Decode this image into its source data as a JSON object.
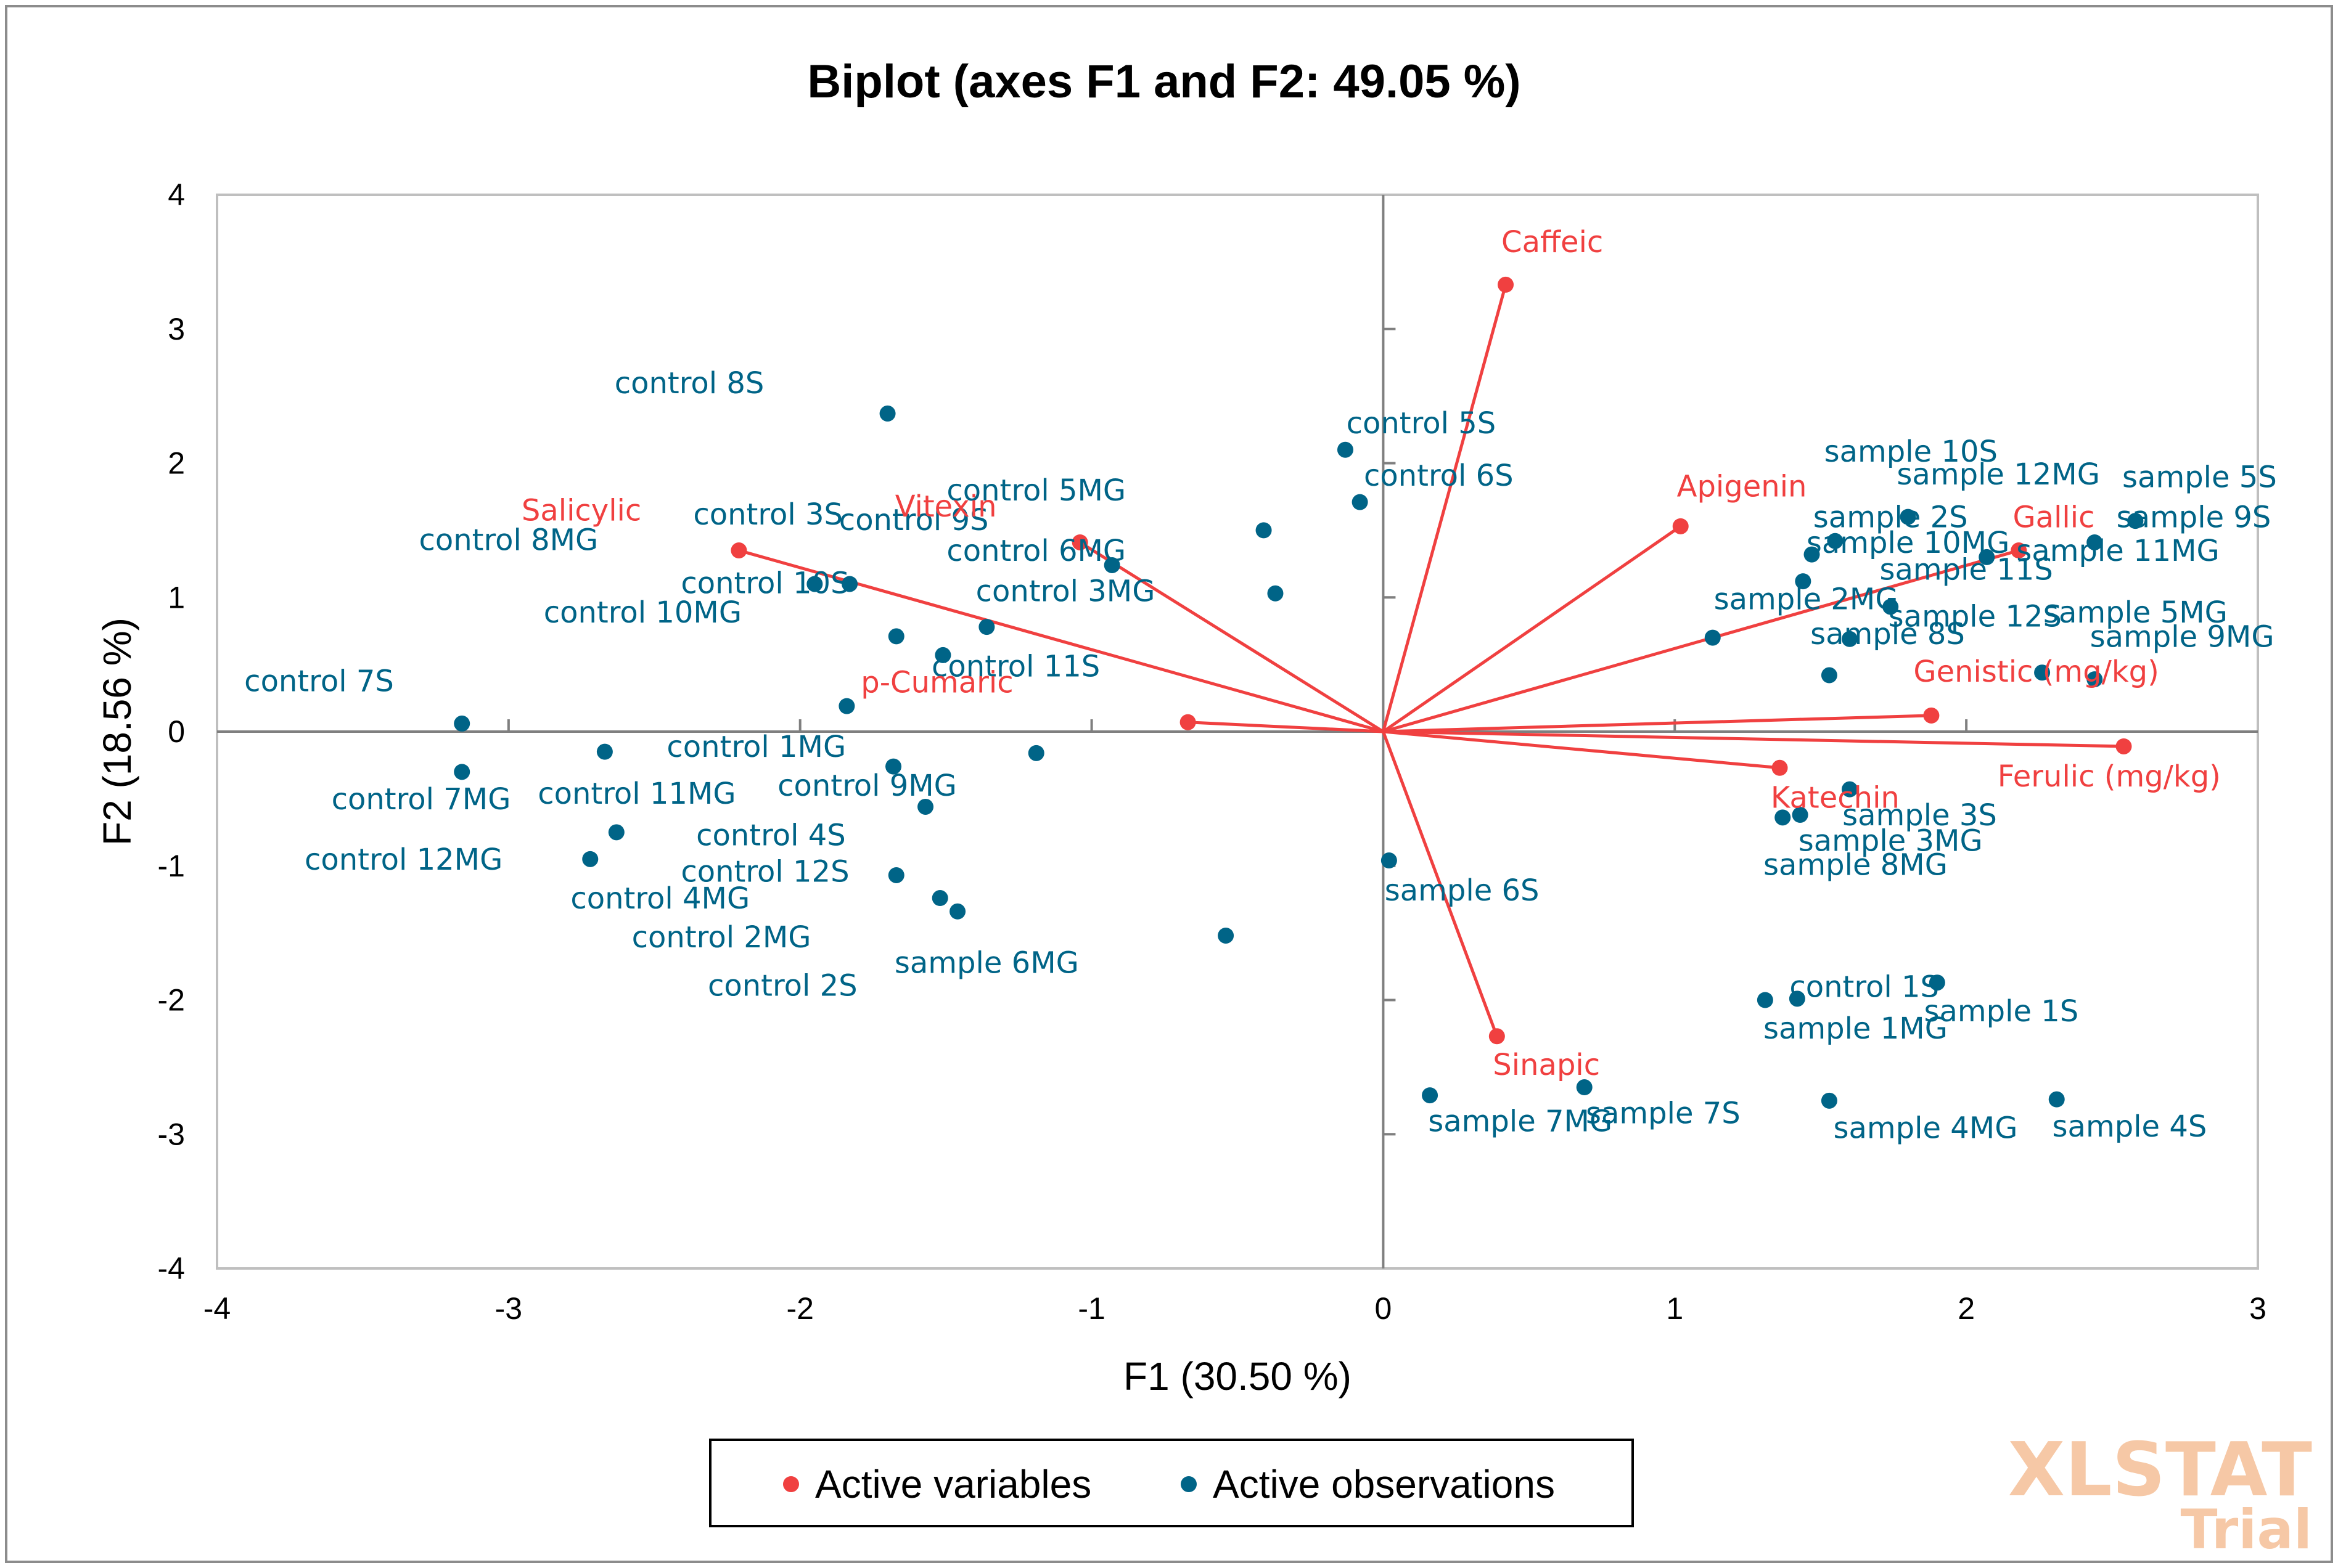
{
  "chart_data": {
    "type": "scatter",
    "title": "Biplot (axes F1 and F2: 49.05 %)",
    "xlabel": "F1 (30.50 %)",
    "ylabel": "F2 (18.56 %)",
    "xlim": [
      -4,
      3
    ],
    "ylim": [
      -4,
      4
    ],
    "xticks": [
      -4,
      -3,
      -2,
      -1,
      0,
      1,
      2,
      3
    ],
    "yticks": [
      -4,
      -3,
      -2,
      -1,
      0,
      1,
      2,
      3,
      4
    ],
    "legend": {
      "position": "bottom-center",
      "entries": [
        {
          "label": "Active variables",
          "color": "#f04040"
        },
        {
          "label": "Active observations",
          "color": "#006487"
        }
      ]
    },
    "colors": {
      "variables": "#f04040",
      "observations": "#006487",
      "axes": "#7f7f7f"
    },
    "watermark": [
      "XLSTAT",
      "Trial"
    ],
    "variables": [
      {
        "name": "Caffeic",
        "x": 0.42,
        "y": 3.33
      },
      {
        "name": "Apigenin",
        "x": 1.02,
        "y": 1.53
      },
      {
        "name": "Gallic",
        "x": 2.18,
        "y": 1.35
      },
      {
        "name": "Genistic (mg/kg)",
        "x": 1.88,
        "y": 0.12
      },
      {
        "name": "Ferulic (mg/kg)",
        "x": 2.54,
        "y": -0.11
      },
      {
        "name": "Katechin",
        "x": 1.36,
        "y": -0.27
      },
      {
        "name": "Sinapic",
        "x": 0.39,
        "y": -2.27
      },
      {
        "name": "Salicylic",
        "x": -2.21,
        "y": 1.35
      },
      {
        "name": "Vitexin",
        "x": -1.04,
        "y": 1.41
      },
      {
        "name": "p-Cumaric",
        "x": -0.67,
        "y": 0.07
      }
    ],
    "observations": [
      {
        "name": "control 8S",
        "x": -1.7,
        "y": 2.37
      },
      {
        "name": "control 5S",
        "x": -0.13,
        "y": 2.1
      },
      {
        "name": "control 6S",
        "x": -0.08,
        "y": 1.71
      },
      {
        "name": "control 3S",
        "x": -1.95,
        "y": 1.1
      },
      {
        "name": "control 8MG",
        "x": -1.83,
        "y": 1.1
      },
      {
        "name": "control 9S",
        "x": -0.41,
        "y": 1.5
      },
      {
        "name": "control 5MG",
        "x": -0.93,
        "y": 1.24
      },
      {
        "name": "control 6MG",
        "x": -0.37,
        "y": 1.03
      },
      {
        "name": "control 3MG",
        "x": -1.36,
        "y": 0.78
      },
      {
        "name": "control 10S",
        "x": -1.67,
        "y": 0.71
      },
      {
        "name": "control 10MG",
        "x": -1.51,
        "y": 0.57
      },
      {
        "name": "control 11S",
        "x": -1.84,
        "y": 0.19
      },
      {
        "name": "control 7S",
        "x": -3.16,
        "y": 0.06
      },
      {
        "name": "control 7MG",
        "x": -3.16,
        "y": -0.3
      },
      {
        "name": "control 1MG",
        "x": -2.67,
        "y": -0.15
      },
      {
        "name": "control 11MG",
        "x": -2.63,
        "y": -0.75
      },
      {
        "name": "control 12MG",
        "x": -2.72,
        "y": -0.95
      },
      {
        "name": "control 9MG",
        "x": -1.68,
        "y": -0.26
      },
      {
        "name": "control 4S",
        "x": -1.57,
        "y": -0.56
      },
      {
        "name": "control 12S",
        "x": -1.67,
        "y": -1.07
      },
      {
        "name": "control 4MG",
        "x": -1.52,
        "y": -1.24
      },
      {
        "name": "control 2MG",
        "x": -1.46,
        "y": -1.34
      },
      {
        "name": "control 2S",
        "x": -1.19,
        "y": -0.16
      },
      {
        "name": "sample 6MG",
        "x": -0.54,
        "y": -1.52
      },
      {
        "name": "sample 6S",
        "x": 0.02,
        "y": -0.96
      },
      {
        "name": "sample 10S",
        "x": 1.8,
        "y": 1.6
      },
      {
        "name": "sample 12MG",
        "x": 1.55,
        "y": 1.42
      },
      {
        "name": "sample 5S",
        "x": 2.58,
        "y": 1.57
      },
      {
        "name": "sample 2S",
        "x": 1.47,
        "y": 1.32
      },
      {
        "name": "sample 9S",
        "x": 2.44,
        "y": 1.41
      },
      {
        "name": "sample 10MG",
        "x": 2.07,
        "y": 1.3
      },
      {
        "name": "sample 11S",
        "x": 1.44,
        "y": 1.12
      },
      {
        "name": "sample 11MG",
        "x": 1.13,
        "y": 0.7
      },
      {
        "name": "sample 2MG",
        "x": 1.74,
        "y": 0.93
      },
      {
        "name": "sample 12S",
        "x": 1.6,
        "y": 0.69
      },
      {
        "name": "sample 5MG",
        "x": 2.26,
        "y": 0.44
      },
      {
        "name": "sample 8S",
        "x": 1.53,
        "y": 0.42
      },
      {
        "name": "sample 9MG",
        "x": 2.44,
        "y": 0.39
      },
      {
        "name": "sample 3S",
        "x": 1.6,
        "y": -0.43
      },
      {
        "name": "sample 3MG",
        "x": 1.43,
        "y": -0.62
      },
      {
        "name": "sample 8MG",
        "x": 1.37,
        "y": -0.64
      },
      {
        "name": "control 1S",
        "x": 1.9,
        "y": -1.87
      },
      {
        "name": "sample 1S",
        "x": 1.42,
        "y": -1.99
      },
      {
        "name": "sample 1MG",
        "x": 1.31,
        "y": -2.0
      },
      {
        "name": "sample 7MG",
        "x": 0.16,
        "y": -2.71
      },
      {
        "name": "sample 7S",
        "x": 0.69,
        "y": -2.65
      },
      {
        "name": "sample 4MG",
        "x": 1.53,
        "y": -2.75
      },
      {
        "name": "sample 4S",
        "x": 2.31,
        "y": -2.74
      }
    ],
    "observation_labels": [
      {
        "text": "control 8S",
        "x": -2.38,
        "y": 2.6
      },
      {
        "text": "control 5S",
        "x": 0.13,
        "y": 2.3
      },
      {
        "text": "control 6S",
        "x": 0.19,
        "y": 1.91
      },
      {
        "text": "control 3S",
        "x": -2.11,
        "y": 1.62
      },
      {
        "text": "control 8MG",
        "x": -3.0,
        "y": 1.43
      },
      {
        "text": "control 9S",
        "x": -1.61,
        "y": 1.58
      },
      {
        "text": "control 5MG",
        "x": -1.19,
        "y": 1.8
      },
      {
        "text": "control 6MG",
        "x": -1.19,
        "y": 1.35
      },
      {
        "text": "control 3MG",
        "x": -1.09,
        "y": 1.05
      },
      {
        "text": "control 10S",
        "x": -2.12,
        "y": 1.11
      },
      {
        "text": "control 10MG",
        "x": -2.54,
        "y": 0.89
      },
      {
        "text": "control 11S",
        "x": -1.26,
        "y": 0.49
      },
      {
        "text": "control 7S",
        "x": -3.65,
        "y": 0.38
      },
      {
        "text": "control 1MG",
        "x": -2.15,
        "y": -0.11
      },
      {
        "text": "control 7MG",
        "x": -3.3,
        "y": -0.5
      },
      {
        "text": "control 11MG",
        "x": -2.56,
        "y": -0.46
      },
      {
        "text": "control 9MG",
        "x": -1.77,
        "y": -0.4
      },
      {
        "text": "control 4S",
        "x": -2.1,
        "y": -0.77
      },
      {
        "text": "control 12MG",
        "x": -3.36,
        "y": -0.95
      },
      {
        "text": "control 12S",
        "x": -2.12,
        "y": -1.04
      },
      {
        "text": "control 4MG",
        "x": -2.48,
        "y": -1.24
      },
      {
        "text": "control 2MG",
        "x": -2.27,
        "y": -1.53
      },
      {
        "text": "control 2S",
        "x": -2.06,
        "y": -1.89
      },
      {
        "text": "sample 6MG",
        "x": -1.36,
        "y": -1.72
      },
      {
        "text": "sample 6S",
        "x": 0.27,
        "y": -1.18
      },
      {
        "text": "sample 10S",
        "x": 1.81,
        "y": 2.09
      },
      {
        "text": "sample 12MG",
        "x": 2.11,
        "y": 1.92
      },
      {
        "text": "sample 5S",
        "x": 2.8,
        "y": 1.9
      },
      {
        "text": "sample 2S",
        "x": 1.74,
        "y": 1.6
      },
      {
        "text": "sample 9S",
        "x": 2.78,
        "y": 1.6
      },
      {
        "text": "sample 10MG",
        "x": 1.8,
        "y": 1.41
      },
      {
        "text": "sample 11MG",
        "x": 2.52,
        "y": 1.35
      },
      {
        "text": "sample 11S",
        "x": 2.0,
        "y": 1.21
      },
      {
        "text": "sample 2MG",
        "x": 1.45,
        "y": 0.99
      },
      {
        "text": "sample 5MG",
        "x": 2.58,
        "y": 0.89
      },
      {
        "text": "sample 12S",
        "x": 2.03,
        "y": 0.86
      },
      {
        "text": "sample 8S",
        "x": 1.73,
        "y": 0.73
      },
      {
        "text": "sample 9MG",
        "x": 2.74,
        "y": 0.71
      },
      {
        "text": "sample 3S",
        "x": 1.84,
        "y": -0.62
      },
      {
        "text": "sample 3MG",
        "x": 1.74,
        "y": -0.81
      },
      {
        "text": "sample 8MG",
        "x": 1.62,
        "y": -0.99
      },
      {
        "text": "control 1S",
        "x": 1.65,
        "y": -1.9
      },
      {
        "text": "sample 1S",
        "x": 2.12,
        "y": -2.08
      },
      {
        "text": "sample 1MG",
        "x": 1.62,
        "y": -2.21
      },
      {
        "text": "sample 7MG",
        "x": 0.47,
        "y": -2.9
      },
      {
        "text": "sample 7S",
        "x": 0.96,
        "y": -2.84
      },
      {
        "text": "sample 4MG",
        "x": 1.86,
        "y": -2.95
      },
      {
        "text": "sample 4S",
        "x": 2.56,
        "y": -2.94
      }
    ],
    "variable_labels": [
      {
        "text": "Caffeic",
        "x": 0.58,
        "y": 3.65
      },
      {
        "text": "Apigenin",
        "x": 1.23,
        "y": 1.83
      },
      {
        "text": "Gallic",
        "x": 2.3,
        "y": 1.6
      },
      {
        "text": "Genistic (mg/kg)",
        "x": 2.24,
        "y": 0.45
      },
      {
        "text": "Ferulic (mg/kg)",
        "x": 2.49,
        "y": -0.33
      },
      {
        "text": "Katechin",
        "x": 1.55,
        "y": -0.49
      },
      {
        "text": "Sinapic",
        "x": 0.56,
        "y": -2.48
      },
      {
        "text": "Salicylic",
        "x": -2.75,
        "y": 1.65
      },
      {
        "text": "Vitexin",
        "x": -1.5,
        "y": 1.68
      },
      {
        "text": "p-Cumaric",
        "x": -1.53,
        "y": 0.37
      }
    ]
  }
}
